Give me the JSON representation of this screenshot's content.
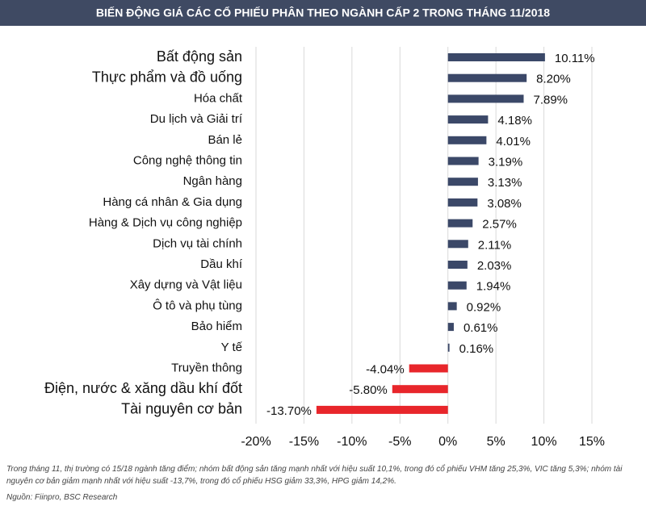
{
  "chart_data": {
    "type": "barh",
    "title": "BIẾN ĐỘNG GIÁ CÁC CỔ PHIẾU PHÂN THEO NGÀNH CẤP 2 TRONG THÁNG 11/2018",
    "categories": [
      "Bất động sản",
      "Thực phẩm và đồ uống",
      "Hóa chất",
      "Du lịch và Giải trí",
      "Bán lẻ",
      "Công nghệ thông tin",
      "Ngân hàng",
      "Hàng cá nhân & Gia dụng",
      "Hàng & Dịch vụ công nghiệp",
      "Dịch vụ tài chính",
      "Dầu khí",
      "Xây dựng và Vật liệu",
      "Ô tô và phụ tùng",
      "Bảo hiểm",
      "Y tế",
      "Truyền thông",
      "Điện, nước & xăng dầu khí đốt",
      "Tài nguyên cơ bản"
    ],
    "values": [
      10.11,
      8.2,
      7.89,
      4.18,
      4.01,
      3.19,
      3.13,
      3.08,
      2.57,
      2.11,
      2.03,
      1.94,
      0.92,
      0.61,
      0.16,
      -4.04,
      -5.8,
      -13.7
    ],
    "value_labels": [
      "10.11%",
      "8.20%",
      "7.89%",
      "4.18%",
      "4.01%",
      "3.19%",
      "3.13%",
      "3.08%",
      "2.57%",
      "2.11%",
      "2.03%",
      "1.94%",
      "0.92%",
      "0.61%",
      "0.16%",
      "-4.04%",
      "-5.80%",
      "-13.70%"
    ],
    "colors": [
      "#3b4868",
      "#3b4868",
      "#3b4868",
      "#3b4868",
      "#3b4868",
      "#3b4868",
      "#3b4868",
      "#3b4868",
      "#3b4868",
      "#3b4868",
      "#3b4868",
      "#3b4868",
      "#3b4868",
      "#3b4868",
      "#3b4868",
      "#e8262b",
      "#e8262b",
      "#e8262b"
    ],
    "xlim": [
      -20,
      15
    ],
    "xticks": [
      {
        "value": -20,
        "label": "-20%"
      },
      {
        "value": -15,
        "label": "-15%"
      },
      {
        "value": -10,
        "label": "-10%"
      },
      {
        "value": -5,
        "label": "-5%"
      },
      {
        "value": 0,
        "label": "0%"
      },
      {
        "value": 5,
        "label": "5%"
      },
      {
        "value": 10,
        "label": "10%"
      },
      {
        "value": 15,
        "label": "15%"
      }
    ],
    "grid": true,
    "note": "Trong tháng 11, thị trường có 15/18 ngành tăng điểm; nhóm bất động sản tăng mạnh nhất với hiệu suất 10,1%, trong đó cổ phiếu VHM tăng 25,3%, VIC tăng 5,3%; nhóm tài nguyên cơ bản giảm mạnh nhất với hiệu suất -13,7%, trong đó cổ phiếu HSG giảm 33,3%, HPG giảm 14,2%.",
    "source": "Nguồn: Fiinpro, BSC Research"
  }
}
